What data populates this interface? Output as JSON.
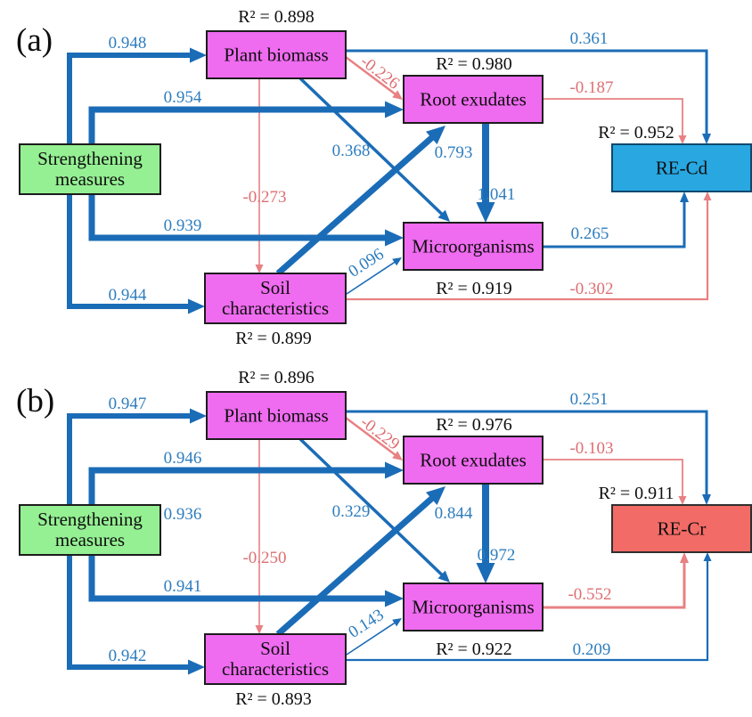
{
  "colors": {
    "arrow_blue": "#1b6cb7",
    "label_blue": "#2e7dbd",
    "arrow_red": "#e88183",
    "label_red": "#dd6f72",
    "box_magenta": "#ef6bf0",
    "box_green": "#95f093",
    "box_cd": "#28a7e1",
    "box_cr": "#f26b66",
    "box_border": "#1c1c1c",
    "border_cd": "#11486e",
    "border_cr": "#303030",
    "ink": "#0e0e0e"
  },
  "panels": [
    {
      "label": "(a)",
      "nodes": {
        "sm": {
          "line1": "Strengthening",
          "line2": "measures"
        },
        "plant": {
          "label": "Plant biomass",
          "r2": "R² = 0.898"
        },
        "root": {
          "label": "Root exudates",
          "r2": "R² = 0.980"
        },
        "micro": {
          "label": "Microorganisms",
          "r2": "R² = 0.919"
        },
        "soil": {
          "line1": "Soil",
          "line2": "characteristics",
          "r2": "R² = 0.899"
        },
        "outcome": {
          "label": "RE-Cd",
          "r2": "R² = 0.952"
        }
      },
      "paths": {
        "sm_plant": "0.948",
        "sm_root": "0.954",
        "sm_micro": "0.939",
        "sm_soil": "0.944",
        "plant_re": "0.361",
        "root_re": "-0.187",
        "plant_root": "-0.226",
        "plant_micro": "0.368",
        "soil_root": "0.793",
        "root_micro": "1.041",
        "soil_micro": "0.096",
        "micro_re": "0.265",
        "soil_re": "-0.302",
        "plant_soil": "-0.273"
      }
    },
    {
      "label": "(b)",
      "nodes": {
        "sm": {
          "line1": "Strengthening",
          "line2": "measures"
        },
        "plant": {
          "label": "Plant biomass",
          "r2": "R² = 0.896"
        },
        "root": {
          "label": "Root exudates",
          "r2": "R² = 0.976"
        },
        "micro": {
          "label": "Microorganisms",
          "r2": "R² = 0.922"
        },
        "soil": {
          "line1": "Soil",
          "line2": "characteristics",
          "r2": "R² = 0.893"
        },
        "outcome": {
          "label": "RE-Cr",
          "r2": "R² = 0.911"
        }
      },
      "paths": {
        "sm_plant": "0.947",
        "sm_root": "0.946",
        "sm_extra": "0.936",
        "sm_micro": "0.941",
        "sm_soil": "0.942",
        "plant_re": "0.251",
        "root_re": "-0.103",
        "plant_root": "-0.229",
        "plant_micro": "0.329",
        "soil_root": "0.844",
        "root_micro": "0.972",
        "soil_micro": "0.143",
        "micro_re": "-0.552",
        "soil_re": "0.209",
        "plant_soil": "-0.250"
      }
    }
  ]
}
